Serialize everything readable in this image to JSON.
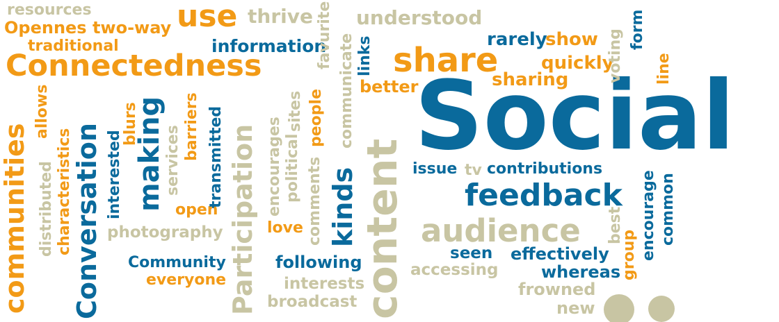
{
  "colors": {
    "orange": "#f29a16",
    "blue": "#0a6a9c",
    "tan": "#c8c5a3",
    "background": "#ffffff"
  },
  "words": {
    "resources": "resources",
    "use": "use",
    "thrive": "thrive",
    "understood": "understood",
    "opennes_two_way": "Opennes two-way",
    "traditional": "traditional",
    "information": "information",
    "rarely": "rarely",
    "show": "show",
    "connectedness": "Connectedness",
    "share": "share",
    "quickly": "quickly",
    "better": "better",
    "sharing": "sharing",
    "social": "Social",
    "issue": "issue",
    "tv": "tv",
    "contributions": "contributions",
    "feedback": "feedback",
    "audience": "audience",
    "seen": "seen",
    "effectively": "effectively",
    "whereas": "whereas",
    "frowned": "frowned",
    "new": "new",
    "accessing": "accessing",
    "open": "open",
    "love": "love",
    "photography": "photography",
    "community": "Community",
    "following": "following",
    "everyone": "everyone",
    "interests": "interests",
    "broadcast": "broadcast",
    "communities": "communities",
    "allows": "allows",
    "distributed": "distributed",
    "characteristics": "characteristics",
    "conversation": "Conversation",
    "interested": "interested",
    "blurs": "blurs",
    "making": "making",
    "services": "services",
    "barriers": "barriers",
    "transmitted": "transmitted",
    "participation": "Participation",
    "encourages": "encourages",
    "political": "political",
    "sites": "sites",
    "people": "people",
    "favurite": "favurite",
    "communicate": "communicate",
    "comments": "comments",
    "kinds": "kinds",
    "links": "links",
    "content": "content",
    "form": "form",
    "voting": "voting",
    "line": "line",
    "encourage": "encourage",
    "common": "common",
    "best": "best",
    "group": "group"
  }
}
